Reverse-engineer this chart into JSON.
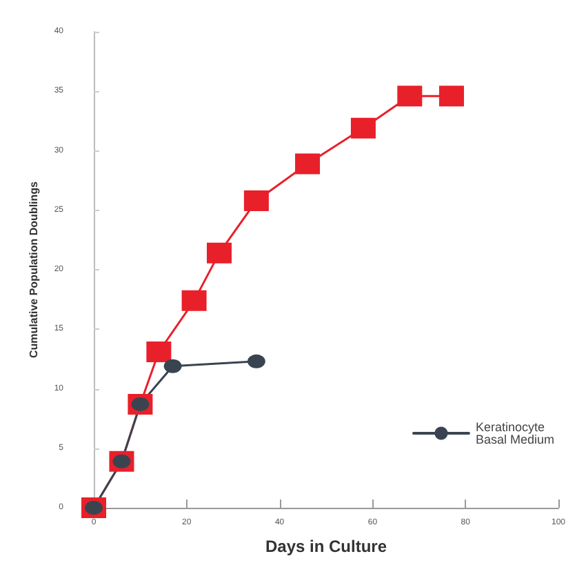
{
  "chart_data": {
    "type": "line",
    "xlabel": "Days in Culture",
    "ylabel": "Cumulative Population Doublings",
    "xlim": [
      0,
      100
    ],
    "xticks": [
      0,
      20,
      40,
      60,
      80,
      100
    ],
    "ylim": [
      0,
      40
    ],
    "yticks": [
      0,
      5,
      10,
      15,
      20,
      25,
      30,
      35,
      40
    ],
    "grid": false,
    "legend": "bottom right",
    "line_style": "solid",
    "series": [
      {
        "color": "#e8202a",
        "marker": "square",
        "x": [
          0,
          6,
          10,
          14,
          21.6,
          27,
          35,
          46,
          58,
          68,
          77
        ],
        "values": [
          0,
          3.9,
          8.7,
          13.1,
          17.4,
          21.4,
          25.8,
          28.9,
          31.9,
          34.6,
          34.6
        ]
      },
      {
        "name": "Keratinocyte Basal Medium",
        "color": "#3a4450",
        "marker": "circle",
        "x": [
          0,
          6,
          10,
          17,
          35
        ],
        "values": [
          0,
          3.9,
          8.7,
          11.9,
          12.3
        ]
      }
    ]
  }
}
